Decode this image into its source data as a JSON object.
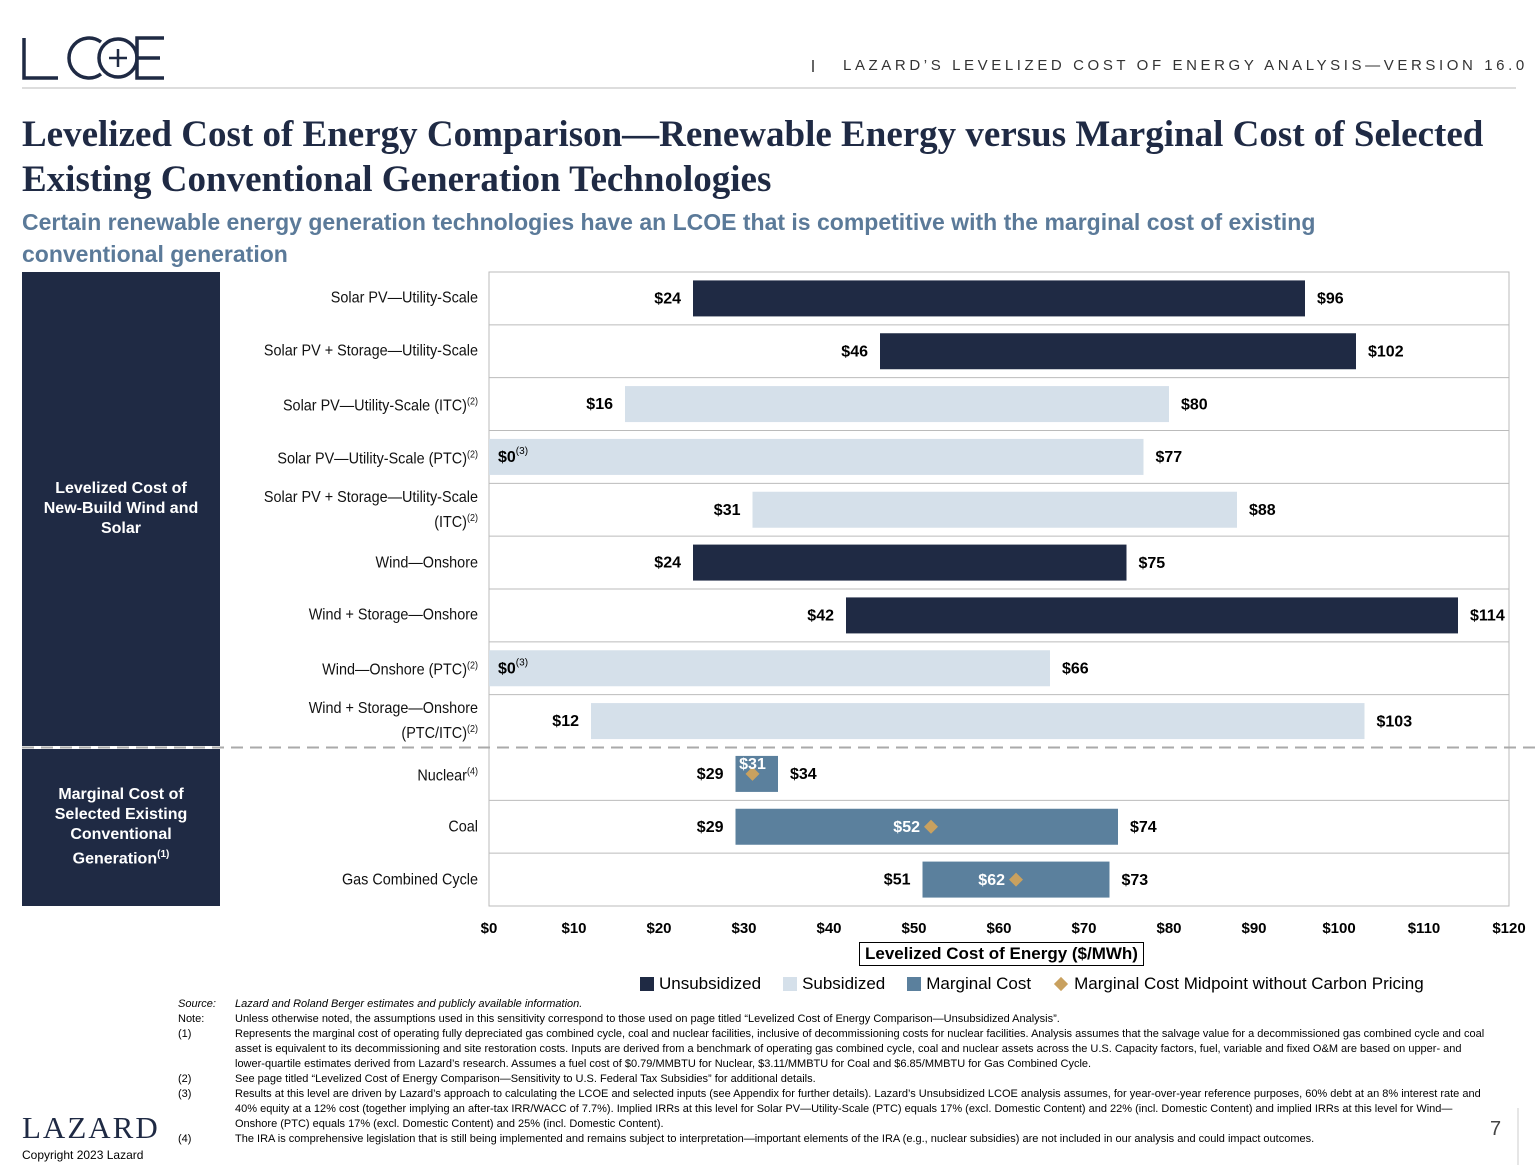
{
  "header": {
    "text": "LAZARD’S LEVELIZED COST OF ENERGY ANALYSIS—VERSION 16.0"
  },
  "title": "Levelized Cost of Energy Comparison—Renewable Energy versus Marginal Cost of Selected Existing Conventional Generation Technologies",
  "subtitle": "Certain renewable energy generation technologies have an LCOE that is competitive with the marginal cost of existing conventional generation",
  "groups": [
    {
      "label": "Levelized Cost of New-Build Wind and Solar"
    },
    {
      "label": "Marginal Cost of Selected Existing Conventional Generation",
      "note": "(1)"
    }
  ],
  "chart_data": {
    "type": "floating_bar",
    "categories": [
      "Solar PV—Utility-Scale",
      "Solar PV + Storage—Utility-Scale",
      "Solar PV—Utility-Scale (ITC)",
      "Solar PV—Utility-Scale (PTC)",
      "Solar PV + Storage—Utility-Scale (ITC)",
      "Wind—Onshore",
      "Wind + Storage—Onshore",
      "Wind—Onshore (PTC)",
      "Wind + Storage—Onshore (PTC/ITC)",
      "Nuclear",
      "Coal",
      "Gas Combined Cycle"
    ],
    "category_notes": [
      null,
      null,
      "(2)",
      "(2)",
      "(2)",
      null,
      null,
      "(2)",
      "(2)",
      "(4)",
      null,
      null
    ],
    "low": [
      24,
      46,
      16,
      0,
      31,
      24,
      42,
      0,
      12,
      29,
      29,
      51
    ],
    "low_labels": [
      "$24",
      "$46",
      "$16",
      "$0",
      "$31",
      "$24",
      "$42",
      "$0",
      "$12",
      "$29",
      "$29",
      "$51"
    ],
    "low_notes": [
      null,
      null,
      null,
      "(3)",
      null,
      null,
      null,
      "(3)",
      null,
      null,
      null,
      null
    ],
    "high": [
      96,
      102,
      80,
      77,
      88,
      75,
      114,
      66,
      103,
      34,
      74,
      73
    ],
    "high_labels": [
      "$96",
      "$102",
      "$80",
      "$77",
      "$88",
      "$75",
      "$114",
      "$66",
      "$103",
      "$34",
      "$74",
      "$73"
    ],
    "midpoints": [
      null,
      null,
      null,
      null,
      null,
      null,
      null,
      null,
      null,
      31,
      52,
      62
    ],
    "midpoint_labels": [
      null,
      null,
      null,
      null,
      null,
      null,
      null,
      null,
      null,
      "$31",
      "$52",
      "$62"
    ],
    "bar_series": [
      0,
      0,
      1,
      1,
      1,
      0,
      0,
      1,
      1,
      2,
      2,
      2
    ],
    "midpoint_series": 3,
    "series": [
      {
        "name": "Unsubsidized",
        "color": "#1f2a44",
        "marker": "square"
      },
      {
        "name": "Subsidized",
        "color": "#d5e0ea",
        "marker": "square"
      },
      {
        "name": "Marginal Cost",
        "color": "#5b809d",
        "marker": "square"
      },
      {
        "name": "Marginal Cost Midpoint without Carbon Pricing",
        "color": "#c9a15f",
        "marker": "diamond"
      }
    ],
    "xlim": [
      0,
      120
    ],
    "xticks": [
      {
        "value": 0,
        "label": "$0"
      },
      {
        "value": 10,
        "label": "$10"
      },
      {
        "value": 20,
        "label": "$20"
      },
      {
        "value": 30,
        "label": "$30"
      },
      {
        "value": 40,
        "label": "$40"
      },
      {
        "value": 50,
        "label": "$50"
      },
      {
        "value": 60,
        "label": "$60"
      },
      {
        "value": 70,
        "label": "$70"
      },
      {
        "value": 80,
        "label": "$80"
      },
      {
        "value": 90,
        "label": "$90"
      },
      {
        "value": 100,
        "label": "$100"
      },
      {
        "value": 110,
        "label": "$110"
      },
      {
        "value": 120,
        "label": "$120"
      }
    ],
    "xlabel": "Levelized Cost of Energy ($/MWh)"
  },
  "footnotes": [
    {
      "marker": "Source:",
      "text": "Lazard and Roland Berger estimates and publicly available information."
    },
    {
      "marker": "Note:",
      "text": "Unless otherwise noted, the assumptions used in this sensitivity correspond to those used on page titled “Levelized Cost of Energy Comparison—Unsubsidized Analysis”."
    },
    {
      "marker": "(1)",
      "text": "Represents the marginal cost of operating fully depreciated gas combined cycle, coal and nuclear facilities, inclusive of decommissioning costs for nuclear facilities. Analysis assumes that the salvage value for a decommissioned gas combined cycle and coal asset is equivalent to its decommissioning and site restoration costs. Inputs are derived from a benchmark of operating gas combined cycle, coal and nuclear assets across the U.S. Capacity factors, fuel, variable and fixed O&M are based on upper- and lower-quartile estimates derived from Lazard’s research. Assumes a fuel cost of $0.79/MMBTU for Nuclear, $3.11/MMBTU for Coal and $6.85/MMBTU for Gas Combined Cycle."
    },
    {
      "marker": "(2)",
      "text": "See page titled “Levelized Cost of Energy Comparison—Sensitivity to U.S. Federal Tax Subsidies” for additional details."
    },
    {
      "marker": "(3)",
      "text": "Results at this level are driven by Lazard’s approach to calculating the LCOE and selected inputs (see Appendix for further details). Lazard’s Unsubsidized LCOE analysis assumes, for year-over-year reference purposes, 60% debt at an 8% interest rate and 40% equity at a 12% cost (together implying an after-tax IRR/WACC of 7.7%). Implied IRRs at this level for Solar PV—Utility-Scale (PTC) equals 17% (excl. Domestic Content) and 22% (incl. Domestic Content) and implied IRRs at this level for Wind—Onshore (PTC) equals 17% (excl. Domestic Content) and 25% (incl. Domestic Content)."
    },
    {
      "marker": "(4)",
      "text": "The IRA is comprehensive legislation that is still being implemented and remains subject to interpretation—important elements of the IRA (e.g., nuclear subsidies) are not included in our analysis and could impact outcomes."
    }
  ],
  "footer": {
    "brand": "LAZARD",
    "copyright": "Copyright 2023 Lazard",
    "page": "7"
  }
}
